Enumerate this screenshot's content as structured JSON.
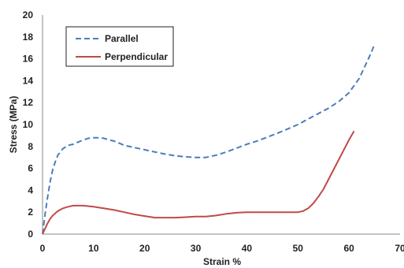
{
  "chart_data": {
    "type": "line",
    "title": "",
    "xlabel": "Strain %",
    "ylabel": "Stress (MPa)",
    "xlim": [
      0,
      70
    ],
    "ylim": [
      0,
      20
    ],
    "xticks": [
      0,
      10,
      20,
      30,
      40,
      50,
      60,
      70
    ],
    "yticks": [
      0,
      2,
      4,
      6,
      8,
      10,
      12,
      14,
      16,
      18,
      20
    ],
    "grid": false,
    "legend": {
      "placement": "top-left",
      "boxed": true
    },
    "series": [
      {
        "name": "Parallel",
        "color": "#4a7ebb",
        "style": "dashed",
        "x": [
          0,
          0.5,
          1,
          1.5,
          2,
          2.5,
          3,
          4,
          5,
          6,
          7,
          8,
          9,
          10,
          11,
          12,
          13,
          14,
          15,
          16,
          18,
          20,
          22,
          24,
          26,
          28,
          30,
          32,
          34,
          36,
          38,
          40,
          42,
          44,
          46,
          48,
          50,
          52,
          54,
          56,
          58,
          60,
          62,
          63,
          64,
          65
        ],
        "y": [
          0,
          1.8,
          3.4,
          4.8,
          5.9,
          6.6,
          7.2,
          7.8,
          8.1,
          8.2,
          8.4,
          8.6,
          8.75,
          8.8,
          8.8,
          8.75,
          8.6,
          8.5,
          8.3,
          8.1,
          7.9,
          7.7,
          7.5,
          7.3,
          7.15,
          7.05,
          7.0,
          7.0,
          7.2,
          7.5,
          7.85,
          8.2,
          8.5,
          8.85,
          9.2,
          9.6,
          10.0,
          10.5,
          11.0,
          11.5,
          12.1,
          12.9,
          14.2,
          15.2,
          16.2,
          17.3
        ]
      },
      {
        "name": "Perpendicular",
        "color": "#be4b48",
        "style": "solid",
        "x": [
          0,
          0.5,
          1,
          1.5,
          2,
          3,
          4,
          5,
          6,
          8,
          10,
          12,
          14,
          16,
          18,
          20,
          22,
          24,
          26,
          28,
          30,
          32,
          34,
          36,
          38,
          40,
          42,
          44,
          46,
          48,
          50,
          51,
          52,
          53,
          54,
          55,
          56,
          57,
          58,
          59,
          60,
          61
        ],
        "y": [
          0,
          0.5,
          1.0,
          1.4,
          1.7,
          2.1,
          2.35,
          2.5,
          2.6,
          2.6,
          2.5,
          2.35,
          2.2,
          2.0,
          1.8,
          1.65,
          1.5,
          1.5,
          1.5,
          1.55,
          1.6,
          1.6,
          1.7,
          1.85,
          1.95,
          2.0,
          2.0,
          2.0,
          2.0,
          2.0,
          2.0,
          2.1,
          2.35,
          2.8,
          3.4,
          4.1,
          5.0,
          5.9,
          6.8,
          7.7,
          8.6,
          9.4
        ]
      }
    ]
  }
}
